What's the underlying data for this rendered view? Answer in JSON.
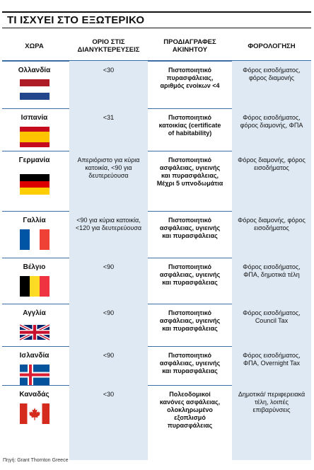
{
  "title": "ΤΙ ΙΣΧΥΕΙ ΣΤΟ ΕΞΩΤΕΡΙΚΟ",
  "headers": [
    "ΧΩΡΑ",
    "ΟΡΙΟ ΣΤΙΣ ΔΙΑΝΥΚΤΕΡΕΥΣΕΙΣ",
    "ΠΡΟΔΙΑΓΡΑΦΕΣ ΑΚΙΝΗΤΟΥ",
    "ΦΟΡΟΛΟΓΗΣΗ"
  ],
  "rows": [
    {
      "country": "Ολλανδία",
      "flag": "netherlands-flag",
      "limit": "<30",
      "specs": "Πιστοποιητικό πυρασφάλειας, αριθμός ενοίκων <4",
      "tax": "Φόρος εισοδήματος, φόρος διαμονής"
    },
    {
      "country": "Ισπανία",
      "flag": "spain-flag",
      "limit": "<31",
      "specs": "Πιστοποιητικό κατοικίας (certificate of habitability)",
      "tax": "Φόρος εισοδήματος, φόρος διαμονής, ΦΠΑ"
    },
    {
      "country": "Γερμανία",
      "flag": "germany-flag",
      "limit": "Απεριόριστο για κύρια κατοικία, <90 για δευτερεύουσα",
      "specs": "Πιστοποιητικό ασφάλειας, υγιεινής και πυρασφάλειας, Μέχρι 5 υπνοδωμάτια",
      "tax": "Φόρος διαμονής, φόρος εισοδήματος"
    },
    {
      "country": "Γαλλία",
      "flag": "france-flag",
      "limit": "<90 για κύρια κατοικία, <120 για δευτερεύουσα",
      "specs": "Πιστοποιητικό ασφάλειας, υγιεινής και πυρασφάλειας",
      "tax": "Φόρος διαμονής, φόρος εισοδήματος"
    },
    {
      "country": "Βέλγιο",
      "flag": "belgium-flag",
      "limit": "<90",
      "specs": "Πιστοποιητικό ασφάλειας, υγιεινής και πυρασφάλειας",
      "tax": "Φόρος εισοδήματος, ΦΠΑ, δημοτικά τέλη"
    },
    {
      "country": "Αγγλία",
      "flag": "uk-flag",
      "limit": "<90",
      "specs": "Πιστοποιητικό ασφάλειας, υγιεινής και πυρασφάλειας",
      "tax": "Φόρος εισοδήματος, Council Tax"
    },
    {
      "country": "Ισλανδία",
      "flag": "iceland-flag",
      "limit": "<90",
      "specs": "Πιστοποιητικό ασφάλειας, υγιεινής και πυρασφάλειας",
      "tax": "Φόρος εισοδήματος, ΦΠΑ, Overnight Tax"
    },
    {
      "country": "Καναδάς",
      "flag": "canada-flag",
      "limit": "<30",
      "specs": "Πολεοδομικοί κανόνες ασφάλειας, ολοκληρωμένο εξοπλισμό πυρασφάλειας",
      "tax": "Δημοτικά/ περιφερειακά τέλη, λοιπές επιβαρύνσεις"
    }
  ],
  "source": "Πηγή: Grant Thornton Greece",
  "colors": {
    "shade": "#dfe9f3",
    "rule": "#3a6ea5"
  }
}
